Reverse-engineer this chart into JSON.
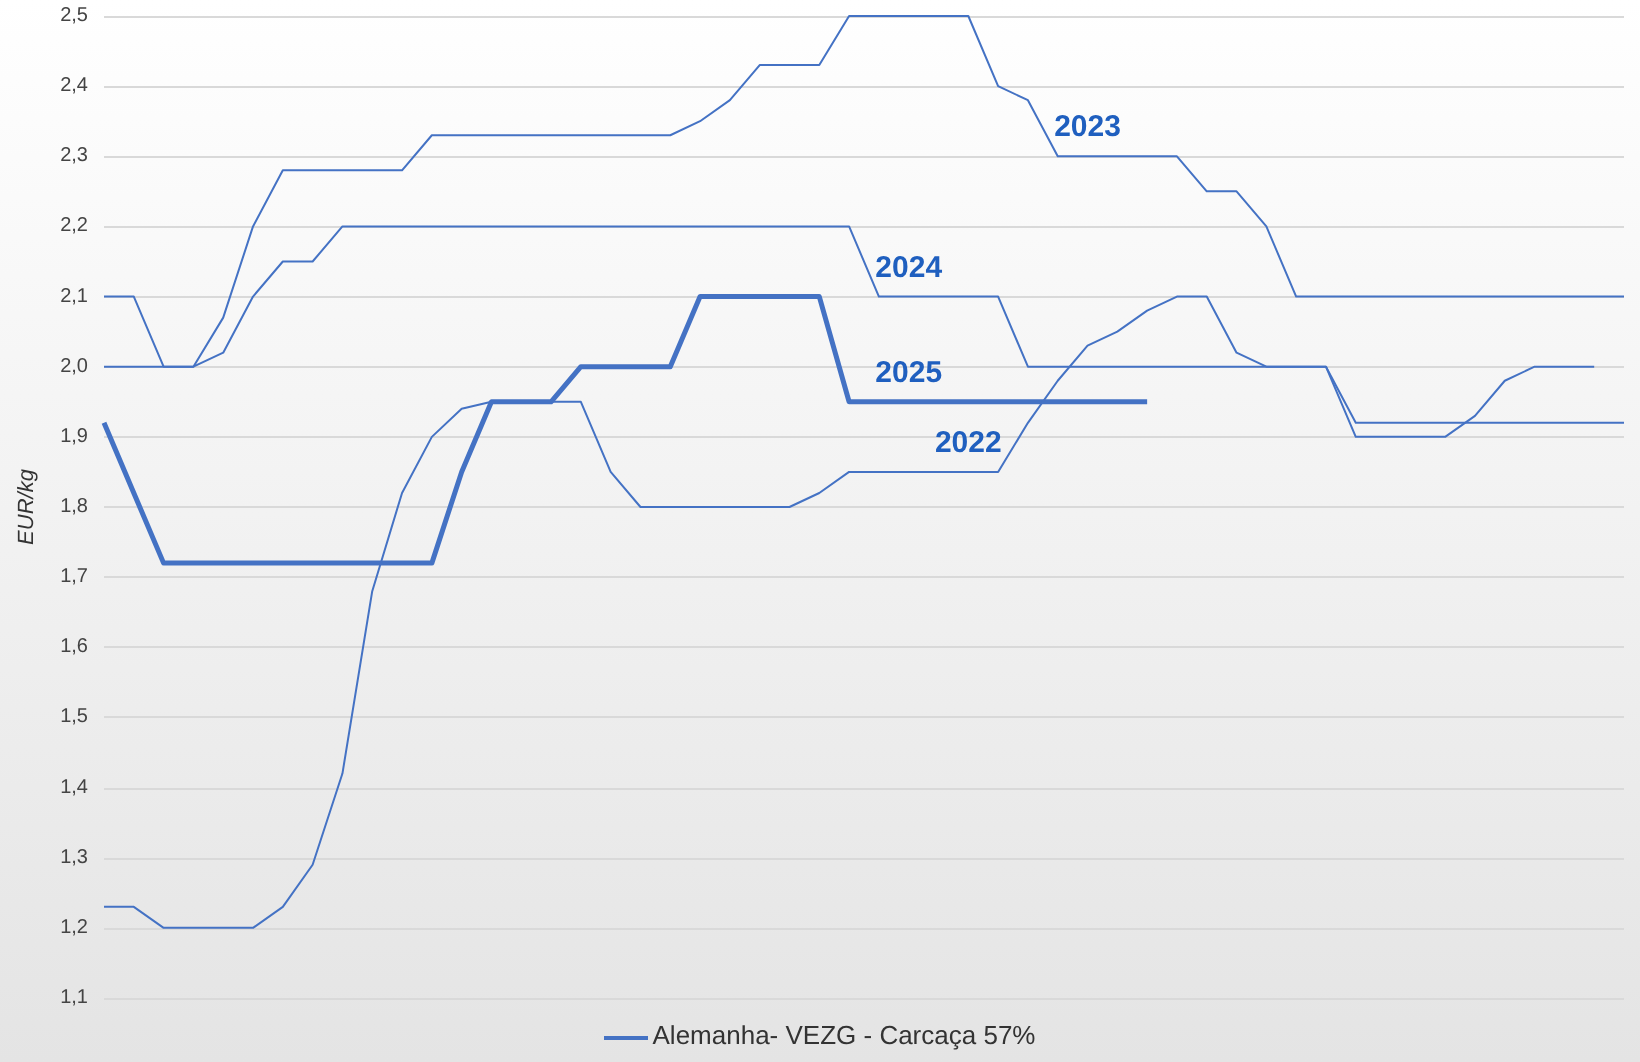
{
  "chart_data": {
    "type": "line",
    "ylabel": "EUR/kg",
    "categories": [
      null,
      null,
      null,
      null,
      null,
      null,
      null,
      null,
      null,
      null,
      null,
      null,
      null,
      null,
      null,
      null,
      null,
      null,
      null,
      null,
      null,
      null,
      null,
      null,
      null,
      null,
      null,
      null,
      null,
      null,
      null,
      null,
      null,
      null,
      null,
      null,
      null,
      null,
      null,
      null,
      null,
      null,
      null,
      null,
      null,
      null,
      null,
      null,
      null,
      null,
      null,
      null
    ],
    "series": [
      {
        "name": "2023",
        "color": "#4472c4",
        "values": [
          2.1,
          2.1,
          2.0,
          2.0,
          2.07,
          2.2,
          2.28,
          2.28,
          2.28,
          2.28,
          2.28,
          2.33,
          2.33,
          2.33,
          2.33,
          2.33,
          2.33,
          2.33,
          2.33,
          2.33,
          2.35,
          2.38,
          2.43,
          2.43,
          2.43,
          2.5,
          2.5,
          2.5,
          2.5,
          2.5,
          2.4,
          2.38,
          2.3,
          2.3,
          2.3,
          2.3,
          2.3,
          2.25,
          2.25,
          2.2,
          2.1,
          2.1,
          2.1,
          2.1,
          2.1,
          2.1,
          2.1,
          2.1,
          2.1,
          2.1,
          2.1,
          2.1
        ]
      },
      {
        "name": "2024",
        "color": "#4472c4",
        "values": [
          2.0,
          2.0,
          2.0,
          2.0,
          2.02,
          2.1,
          2.15,
          2.15,
          2.2,
          2.2,
          2.2,
          2.2,
          2.2,
          2.2,
          2.2,
          2.2,
          2.2,
          2.2,
          2.2,
          2.2,
          2.2,
          2.2,
          2.2,
          2.2,
          2.2,
          2.2,
          2.1,
          2.1,
          2.1,
          2.1,
          2.1,
          2.0,
          2.0,
          2.0,
          2.0,
          2.0,
          2.0,
          2.0,
          2.0,
          2.0,
          2.0,
          2.0,
          1.92,
          1.92,
          1.92,
          1.92,
          1.92,
          1.92,
          1.92,
          1.92,
          1.92,
          1.92
        ]
      },
      {
        "name": "2025",
        "color": "#4472c4",
        "values": [
          1.92,
          1.82,
          1.72,
          1.72,
          1.72,
          1.72,
          1.72,
          1.72,
          1.72,
          1.72,
          1.72,
          1.72,
          1.85,
          1.95,
          1.95,
          1.95,
          2.0,
          2.0,
          2.0,
          2.0,
          2.1,
          2.1,
          2.1,
          2.1,
          2.1,
          1.95,
          1.95,
          1.95,
          1.95,
          1.95,
          1.95,
          1.95,
          1.95,
          1.95,
          1.95,
          1.95,
          null,
          null,
          null,
          null,
          null,
          null,
          null,
          null,
          null,
          null,
          null,
          null,
          null,
          null,
          null,
          null
        ]
      },
      {
        "name": "2022",
        "color": "#4472c4",
        "values": [
          1.23,
          1.23,
          1.2,
          1.2,
          1.2,
          1.2,
          1.23,
          1.29,
          1.42,
          1.68,
          1.82,
          1.9,
          1.94,
          1.95,
          1.95,
          1.95,
          1.95,
          1.85,
          1.8,
          1.8,
          1.8,
          1.8,
          1.8,
          1.8,
          1.82,
          1.85,
          1.85,
          1.85,
          1.85,
          1.85,
          1.85,
          1.92,
          1.98,
          2.03,
          2.05,
          2.08,
          2.1,
          2.1,
          2.02,
          2.0,
          2.0,
          2.0,
          1.9,
          1.9,
          1.9,
          1.9,
          1.93,
          1.98,
          2.0,
          2.0,
          2.0,
          null
        ]
      }
    ],
    "ylim": [
      1.1,
      2.5
    ],
    "yticks": [
      {
        "value": 1.1,
        "label": "1,1"
      },
      {
        "value": 1.2,
        "label": "1,2"
      },
      {
        "value": 1.3,
        "label": "1,3"
      },
      {
        "value": 1.4,
        "label": "1,4"
      },
      {
        "value": 1.5,
        "label": "1,5"
      },
      {
        "value": 1.6,
        "label": "1,6"
      },
      {
        "value": 1.7,
        "label": "1,7"
      },
      {
        "value": 1.8,
        "label": "1,8"
      },
      {
        "value": 1.9,
        "label": "1,9"
      },
      {
        "value": 2.0,
        "label": "2,0"
      },
      {
        "value": 2.1,
        "label": "2,1"
      },
      {
        "value": 2.2,
        "label": "2,2"
      },
      {
        "value": 2.3,
        "label": "2,3"
      },
      {
        "value": 2.4,
        "label": "2,4"
      },
      {
        "value": 2.5,
        "label": "2,5"
      }
    ],
    "grid": "y",
    "marker": "none",
    "line_style": "solid",
    "annotations": [
      "Alemanha- VEZG - Carcaça 57%"
    ]
  }
}
